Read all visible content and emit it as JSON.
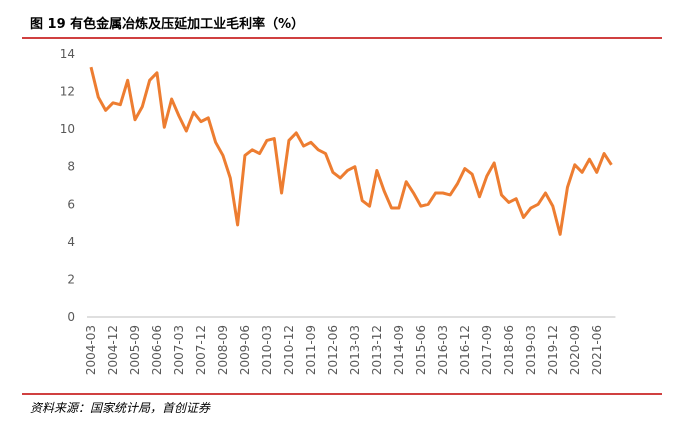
{
  "chart_data": {
    "type": "line",
    "title": "图 19 有色金属冶炼及压延加工业毛利率（%）",
    "source": "资料来源：国家统计局，首创证券",
    "categories": [
      "2004-03",
      null,
      null,
      "2004-12",
      null,
      null,
      "2005-09",
      null,
      null,
      "2006-06",
      null,
      null,
      "2007-03",
      null,
      null,
      "2007-12",
      null,
      null,
      "2008-09",
      null,
      null,
      "2009-06",
      null,
      null,
      "2010-03",
      null,
      null,
      "2010-12",
      null,
      null,
      "2011-09",
      null,
      null,
      "2012-06",
      null,
      null,
      "2013-03",
      null,
      null,
      "2013-12",
      null,
      null,
      "2014-09",
      null,
      null,
      "2015-06",
      null,
      null,
      "2016-03",
      null,
      null,
      "2016-12",
      null,
      null,
      "2017-09",
      null,
      null,
      "2018-06",
      null,
      null,
      "2019-03",
      null,
      null,
      "2019-12",
      null,
      null,
      "2020-09",
      null,
      null,
      "2021-06",
      null,
      null
    ],
    "series": [
      {
        "name": "毛利率",
        "color": "#ED7D31",
        "values": [
          13.3,
          11.7,
          11.0,
          11.4,
          11.3,
          12.6,
          10.5,
          11.2,
          12.6,
          13.0,
          10.1,
          11.6,
          10.7,
          9.9,
          10.9,
          10.4,
          10.6,
          9.3,
          8.6,
          7.4,
          4.9,
          8.6,
          8.9,
          8.7,
          9.4,
          9.5,
          6.6,
          9.4,
          9.8,
          9.1,
          9.3,
          8.9,
          8.7,
          7.7,
          7.4,
          7.8,
          8.0,
          6.2,
          5.9,
          7.8,
          6.7,
          5.8,
          5.8,
          7.2,
          6.6,
          5.9,
          6.0,
          6.6,
          6.6,
          6.5,
          7.1,
          7.9,
          7.6,
          6.4,
          7.5,
          8.2,
          6.5,
          6.1,
          6.3,
          5.3,
          5.8,
          6.0,
          6.6,
          5.9,
          4.4,
          6.9,
          8.1,
          7.7,
          8.4,
          7.7,
          8.7,
          8.1
        ]
      }
    ],
    "ylim": [
      0,
      14
    ],
    "yticks": [
      0,
      2,
      4,
      6,
      8,
      10,
      12,
      14
    ],
    "grid": false
  }
}
